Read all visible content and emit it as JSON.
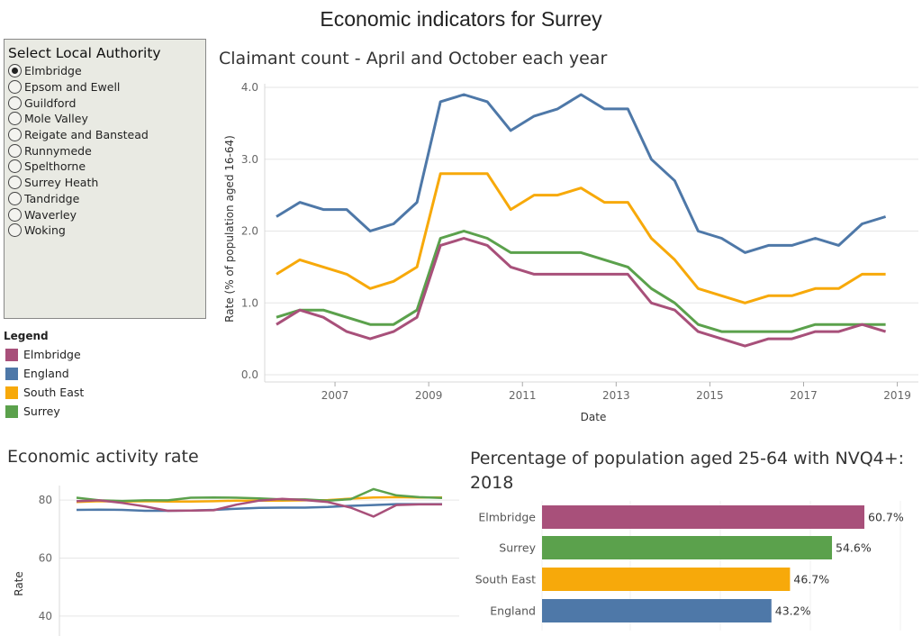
{
  "page": {
    "title": "Economic indicators for Surrey"
  },
  "selector": {
    "title": "Select Local Authority",
    "options": [
      "Elmbridge",
      "Epsom and Ewell",
      "Guildford",
      "Mole Valley",
      "Reigate and Banstead",
      "Runnymede",
      "Spelthorne",
      "Surrey Heath",
      "Tandridge",
      "Waverley",
      "Woking"
    ],
    "selected": "Elmbridge"
  },
  "legend": {
    "title": "Legend",
    "items": [
      {
        "label": "Elmbridge",
        "color": "#a8507a"
      },
      {
        "label": "England",
        "color": "#4e78a8"
      },
      {
        "label": "South East",
        "color": "#f7a90a"
      },
      {
        "label": "Surrey",
        "color": "#5ba14c"
      }
    ]
  },
  "chart_data": [
    {
      "type": "line",
      "title": "Claimant count - April and October each year",
      "xlabel": "Date",
      "ylabel": "Rate (% of population aged 16-64)",
      "ylim": [
        0,
        4
      ],
      "yticks": [
        "0.0",
        "1.0",
        "2.0",
        "3.0",
        "4.0"
      ],
      "yticks_num": [
        0,
        1,
        2,
        3,
        4
      ],
      "xticks": [
        "2007",
        "2009",
        "2011",
        "2013",
        "2015",
        "2017",
        "2019"
      ],
      "xticks_num": [
        2007,
        2009,
        2011,
        2013,
        2015,
        2017,
        2019
      ],
      "xlim": [
        2005.5,
        2019.45
      ],
      "x": [
        2005.75,
        2006.25,
        2006.75,
        2007.25,
        2007.75,
        2008.25,
        2008.75,
        2009.25,
        2009.75,
        2010.25,
        2010.75,
        2011.25,
        2011.75,
        2012.25,
        2012.75,
        2013.25,
        2013.75,
        2014.25,
        2014.75,
        2015.25,
        2015.75,
        2016.25,
        2016.75,
        2017.25,
        2017.75,
        2018.25,
        2018.75
      ],
      "series": [
        {
          "name": "England",
          "color": "#4e78a8",
          "values": [
            2.2,
            2.4,
            2.3,
            2.3,
            2.0,
            2.1,
            2.4,
            3.8,
            3.9,
            3.8,
            3.4,
            3.6,
            3.7,
            3.9,
            3.7,
            3.7,
            3.0,
            2.7,
            2.0,
            1.9,
            1.7,
            1.8,
            1.8,
            1.9,
            1.8,
            2.1,
            2.2
          ]
        },
        {
          "name": "South East",
          "color": "#f7a90a",
          "values": [
            1.4,
            1.6,
            1.5,
            1.4,
            1.2,
            1.3,
            1.5,
            2.8,
            2.8,
            2.8,
            2.3,
            2.5,
            2.5,
            2.6,
            2.4,
            2.4,
            1.9,
            1.6,
            1.2,
            1.1,
            1.0,
            1.1,
            1.1,
            1.2,
            1.2,
            1.4,
            1.4
          ]
        },
        {
          "name": "Surrey",
          "color": "#5ba14c",
          "values": [
            0.8,
            0.9,
            0.9,
            0.8,
            0.7,
            0.7,
            0.9,
            1.9,
            2.0,
            1.9,
            1.7,
            1.7,
            1.7,
            1.7,
            1.6,
            1.5,
            1.2,
            1.0,
            0.7,
            0.6,
            0.6,
            0.6,
            0.6,
            0.7,
            0.7,
            0.7,
            0.7
          ]
        },
        {
          "name": "Elmbridge",
          "color": "#a8507a",
          "values": [
            0.7,
            0.9,
            0.8,
            0.6,
            0.5,
            0.6,
            0.8,
            1.8,
            1.9,
            1.8,
            1.5,
            1.4,
            1.4,
            1.4,
            1.4,
            1.4,
            1.0,
            0.9,
            0.6,
            0.5,
            0.4,
            0.5,
            0.5,
            0.6,
            0.6,
            0.7,
            0.6
          ]
        }
      ]
    },
    {
      "type": "line",
      "title": "Economic activity rate",
      "ylabel": "Rate",
      "ylim": [
        30,
        85
      ],
      "yticks": [
        "40",
        "60",
        "80"
      ],
      "yticks_num": [
        40,
        60,
        80
      ],
      "x": [
        0,
        1,
        2,
        3,
        4,
        5,
        6,
        7,
        8,
        9,
        10,
        11,
        12,
        13,
        14,
        15,
        16
      ],
      "series": [
        {
          "name": "England",
          "color": "#4e78a8",
          "values": [
            76.6,
            76.7,
            76.6,
            76.3,
            76.3,
            76.4,
            76.6,
            77.0,
            77.3,
            77.4,
            77.4,
            77.6,
            78.0,
            78.3,
            78.6,
            78.6,
            78.6
          ]
        },
        {
          "name": "South East",
          "color": "#f7a90a",
          "values": [
            79.3,
            79.6,
            79.5,
            79.6,
            79.5,
            79.5,
            79.6,
            79.8,
            79.8,
            79.8,
            79.9,
            80.0,
            80.5,
            80.9,
            81.0,
            80.9,
            80.9
          ]
        },
        {
          "name": "Surrey",
          "color": "#5ba14c",
          "values": [
            80.8,
            79.9,
            79.7,
            79.9,
            79.9,
            80.8,
            80.9,
            80.8,
            80.6,
            80.2,
            80.2,
            79.8,
            80.3,
            83.8,
            81.6,
            81.0,
            80.7
          ]
        },
        {
          "name": "Elmbridge",
          "color": "#a8507a",
          "values": [
            79.6,
            79.9,
            79.0,
            77.8,
            76.3,
            76.4,
            76.5,
            78.4,
            79.8,
            80.4,
            80.0,
            79.3,
            77.4,
            74.3,
            78.3,
            78.5,
            78.5
          ]
        }
      ]
    },
    {
      "type": "bar",
      "orientation": "horizontal",
      "title": "Percentage of population aged 25-64 with NVQ4+: 2018",
      "categories": [
        "Elmbridge",
        "Surrey",
        "South East",
        "England"
      ],
      "values": [
        60.7,
        54.6,
        46.7,
        43.2
      ],
      "value_labels": [
        "60.7%",
        "54.6%",
        "46.7%",
        "43.2%"
      ],
      "colors": [
        "#a8507a",
        "#5ba14c",
        "#f7a90a",
        "#4e78a8"
      ],
      "xlim": [
        0,
        70
      ]
    }
  ]
}
